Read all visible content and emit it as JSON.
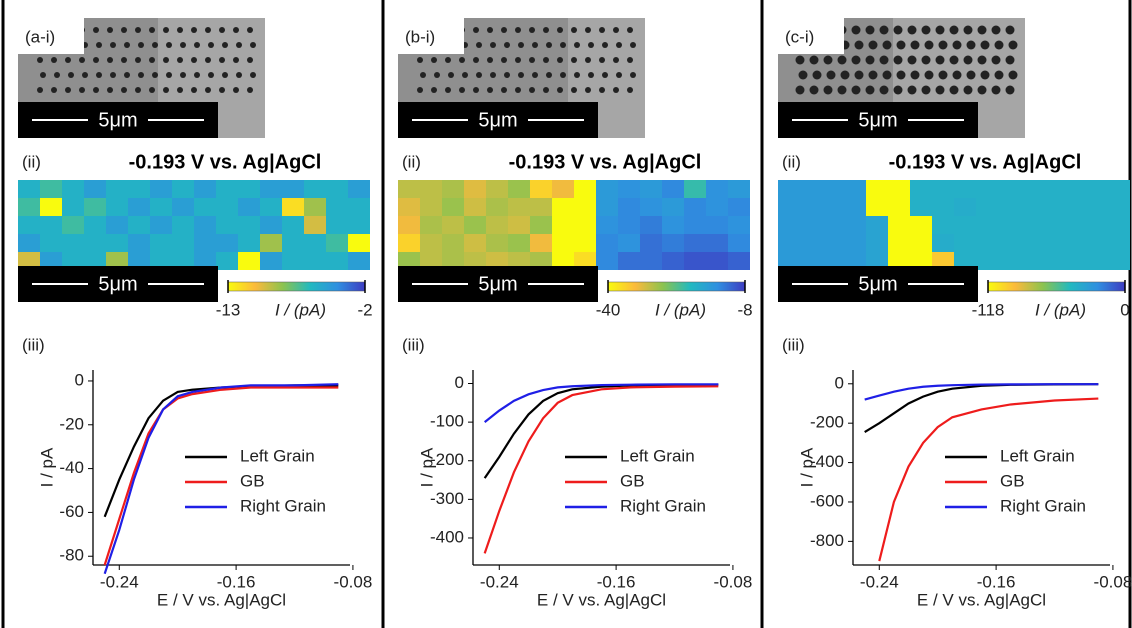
{
  "panels": [
    {
      "sem_label": "(a-i)",
      "sem_scale": "5μm",
      "map_label": "(ii)",
      "map_title": "-0.193 V vs. Ag|AgCl",
      "map_scale": "5μm",
      "chart_label": "(iii)"
    },
    {
      "sem_label": "(b-i)",
      "sem_scale": "5μm",
      "map_label": "(ii)",
      "map_title": "-0.193 V vs. Ag|AgCl",
      "map_scale": "5μm",
      "chart_label": "(iii)"
    },
    {
      "sem_label": "(c-i)",
      "sem_scale": "5μm",
      "map_label": "(ii)",
      "map_title": "-0.193 V vs. Ag|AgCl",
      "map_scale": "5μm",
      "chart_label": "(iii)"
    }
  ],
  "maps": [
    {
      "colorbar_label": "I / (pA)",
      "clim": [
        -13,
        -2
      ],
      "cticks": [
        -13,
        -2
      ],
      "colormap": [
        "#f9fb0e",
        "#fbba3c",
        "#8cc34f",
        "#22b9c0",
        "#2f8fe0",
        "#3e3bc2"
      ],
      "values": [
        [
          -6,
          -7,
          -6,
          -5,
          -6,
          -6,
          -5,
          -6,
          -5,
          -6,
          -6,
          -5,
          -5,
          -6,
          -6,
          -5
        ],
        [
          -7,
          -13,
          -6,
          -7,
          -6,
          -5,
          -6,
          -5,
          -6,
          -6,
          -5,
          -6,
          -12,
          -9,
          -6,
          -6
        ],
        [
          -6,
          -6,
          -7,
          -6,
          -5,
          -6,
          -5,
          -6,
          -5,
          -6,
          -6,
          -5,
          -6,
          -10,
          -6,
          -6
        ],
        [
          -5,
          -6,
          -6,
          -6,
          -6,
          -5,
          -6,
          -6,
          -5,
          -5,
          -6,
          -9,
          -6,
          -6,
          -7,
          -13
        ],
        [
          -10,
          -5,
          -6,
          -6,
          -9,
          -5,
          -6,
          -6,
          -5,
          -6,
          -13,
          -5,
          -6,
          -6,
          -6,
          -5
        ]
      ]
    },
    {
      "colorbar_label": "I / (pA)",
      "clim": [
        -40,
        -8
      ],
      "cticks": [
        -40,
        -8
      ],
      "colormap": [
        "#f9fb0e",
        "#fbba3c",
        "#8cc34f",
        "#22b9c0",
        "#2f8fe0",
        "#3e3bc2"
      ],
      "values": [
        [
          -30,
          -30,
          -29,
          -32,
          -30,
          -28,
          -36,
          -33,
          -40,
          -16,
          -15,
          -16,
          -14,
          -22,
          -15,
          -16
        ],
        [
          -32,
          -30,
          -28,
          -31,
          -29,
          -30,
          -30,
          -40,
          -40,
          -16,
          -14,
          -15,
          -16,
          -14,
          -15,
          -14
        ],
        [
          -33,
          -29,
          -30,
          -28,
          -30,
          -31,
          -28,
          -40,
          -40,
          -15,
          -14,
          -13,
          -15,
          -14,
          -14,
          -15
        ],
        [
          -36,
          -30,
          -29,
          -31,
          -29,
          -28,
          -33,
          -40,
          -40,
          -14,
          -15,
          -12,
          -13,
          -12,
          -12,
          -14
        ],
        [
          -28,
          -30,
          -29,
          -30,
          -31,
          -30,
          -29,
          -40,
          -37,
          -14,
          -12,
          -12,
          -11,
          -10,
          -10,
          -11
        ]
      ]
    },
    {
      "colorbar_label": "I / (pA)",
      "clim": [
        -118,
        0
      ],
      "cticks": [
        -118,
        0
      ],
      "colormap": [
        "#f9fb0e",
        "#fbba3c",
        "#8cc34f",
        "#22b9c0",
        "#2f8fe0",
        "#3e3bc2"
      ],
      "values": [
        [
          -30,
          -30,
          -30,
          -30,
          -118,
          -118,
          -42,
          -42,
          -42,
          -42,
          -42,
          -42,
          -42,
          -42,
          -42,
          -42
        ],
        [
          -30,
          -30,
          -30,
          -30,
          -118,
          -118,
          -42,
          -42,
          -40,
          -42,
          -42,
          -42,
          -42,
          -42,
          -42,
          -42
        ],
        [
          -30,
          -30,
          -30,
          -30,
          -35,
          -118,
          -118,
          -42,
          -42,
          -42,
          -42,
          -42,
          -42,
          -42,
          -42,
          -42
        ],
        [
          -30,
          -30,
          -30,
          -30,
          -35,
          -118,
          -118,
          -40,
          -42,
          -42,
          -42,
          -42,
          -42,
          -42,
          -42,
          -42
        ],
        [
          -30,
          -30,
          -30,
          -30,
          -35,
          -118,
          -118,
          -100,
          -42,
          -42,
          -42,
          -42,
          -42,
          -42,
          -42,
          -42
        ]
      ]
    }
  ],
  "chart_data": [
    {
      "type": "line",
      "xlabel": "E / V vs. Ag|AgCl",
      "ylabel": "I / pA",
      "legend": "right",
      "x": [
        -0.25,
        -0.24,
        -0.23,
        -0.22,
        -0.21,
        -0.2,
        -0.19,
        -0.17,
        -0.15,
        -0.12,
        -0.09
      ],
      "xlim": [
        -0.258,
        -0.082
      ],
      "xticks": [
        -0.24,
        -0.16,
        -0.08
      ],
      "ylim": [
        -84,
        5
      ],
      "yticks": [
        0,
        -20,
        -40,
        -60,
        -80
      ],
      "series": [
        {
          "name": "Left Grain",
          "color": "#000000",
          "values": [
            -62,
            -45,
            -30,
            -17,
            -9,
            -5,
            -4,
            -3,
            -2.5,
            -2,
            -2
          ]
        },
        {
          "name": "GB",
          "color": "#ee1c1c",
          "values": [
            -84,
            -63,
            -42,
            -24,
            -13,
            -8,
            -6,
            -4,
            -3,
            -3,
            -3
          ]
        },
        {
          "name": "Right Grain",
          "color": "#1f1fe6",
          "values": [
            -88,
            -68,
            -45,
            -26,
            -13,
            -7,
            -5,
            -3,
            -2,
            -2,
            -1.5
          ]
        }
      ]
    },
    {
      "type": "line",
      "xlabel": "E / V vs. Ag|AgCl",
      "ylabel": "I / pA",
      "legend": "right",
      "x": [
        -0.25,
        -0.24,
        -0.23,
        -0.22,
        -0.21,
        -0.2,
        -0.19,
        -0.17,
        -0.15,
        -0.12,
        -0.09
      ],
      "xlim": [
        -0.258,
        -0.082
      ],
      "xticks": [
        -0.24,
        -0.16,
        -0.08
      ],
      "ylim": [
        -470,
        35
      ],
      "yticks": [
        0,
        -100,
        -200,
        -300,
        -400
      ],
      "series": [
        {
          "name": "Left Grain",
          "color": "#000000",
          "values": [
            -245,
            -190,
            -130,
            -80,
            -45,
            -25,
            -15,
            -8,
            -5,
            -4,
            -3
          ]
        },
        {
          "name": "GB",
          "color": "#ee1c1c",
          "values": [
            -440,
            -330,
            -230,
            -150,
            -90,
            -50,
            -30,
            -15,
            -10,
            -8,
            -7
          ]
        },
        {
          "name": "Right Grain",
          "color": "#1f1fe6",
          "values": [
            -100,
            -70,
            -45,
            -28,
            -17,
            -10,
            -7,
            -4,
            -3,
            -2,
            -2
          ]
        }
      ]
    },
    {
      "type": "line",
      "xlabel": "E / V vs. Ag|AgCl",
      "ylabel": "I / pA",
      "legend": "right",
      "x": [
        -0.25,
        -0.24,
        -0.23,
        -0.22,
        -0.21,
        -0.2,
        -0.19,
        -0.17,
        -0.15,
        -0.12,
        -0.09
      ],
      "xlim": [
        -0.258,
        -0.082
      ],
      "xticks": [
        -0.24,
        -0.16,
        -0.08
      ],
      "ylim": [
        -920,
        70
      ],
      "yticks": [
        0,
        -200,
        -400,
        -600,
        -800
      ],
      "series": [
        {
          "name": "Left Grain",
          "color": "#000000",
          "values": [
            -245,
            -200,
            -150,
            -100,
            -65,
            -40,
            -25,
            -10,
            -5,
            -3,
            -2
          ]
        },
        {
          "name": "GB",
          "color": "#ee1c1c",
          "values": [
            null,
            -900,
            -600,
            -420,
            -300,
            -220,
            -170,
            -130,
            -105,
            -85,
            -75
          ]
        },
        {
          "name": "Right Grain",
          "color": "#1f1fe6",
          "values": [
            -80,
            -60,
            -40,
            -25,
            -15,
            -10,
            -7,
            -4,
            -3,
            -2,
            -2
          ]
        }
      ]
    }
  ]
}
